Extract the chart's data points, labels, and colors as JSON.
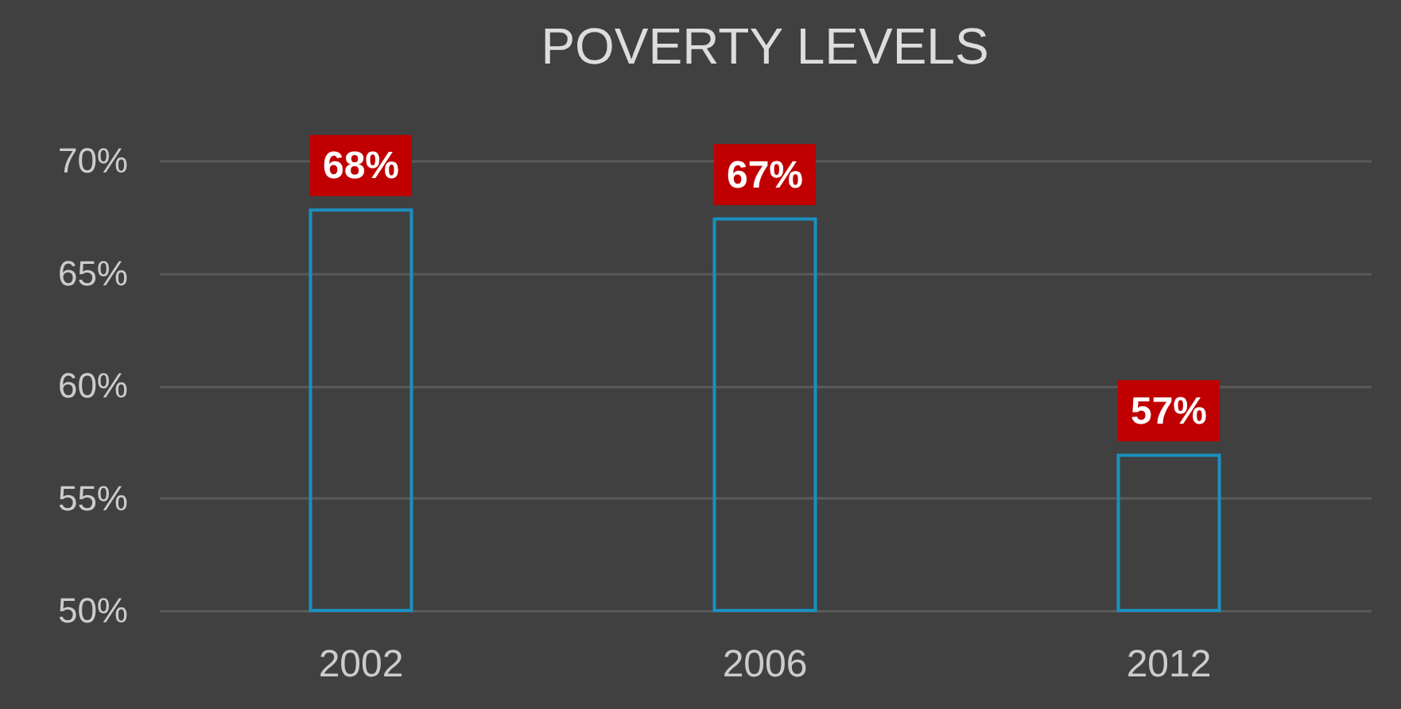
{
  "chart_data": {
    "type": "bar",
    "title": "POVERTY LEVELS",
    "categories": [
      "2002",
      "2006",
      "2012"
    ],
    "values": [
      67.8,
      67.4,
      56.9
    ],
    "value_labels": [
      "68%",
      "67%",
      "57%"
    ],
    "color": "#1a8fc0",
    "ylim": [
      50,
      70
    ],
    "yticks": [
      {
        "value": 50,
        "label": "50%"
      },
      {
        "value": 55,
        "label": "55%"
      },
      {
        "value": 60,
        "label": "60%"
      },
      {
        "value": 65,
        "label": "65%"
      },
      {
        "value": 70,
        "label": "70%"
      }
    ],
    "grid": true
  }
}
